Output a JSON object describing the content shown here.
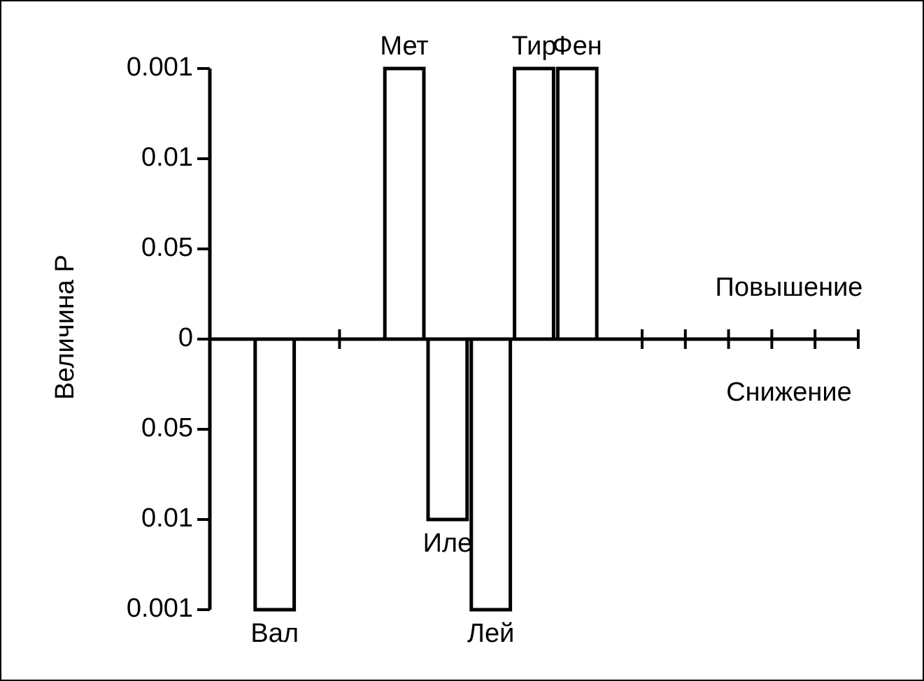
{
  "chart_data": {
    "type": "bar",
    "y_label": "Величина Р",
    "annotations": [
      "Повышение",
      "Снижение"
    ],
    "categories": [
      null,
      "Вал",
      null,
      null,
      "Мет",
      "Иле",
      "Лей",
      "Тир",
      "Фен",
      null,
      null,
      null,
      null,
      null,
      null
    ],
    "values": [
      null,
      -3,
      null,
      null,
      3,
      -2,
      -3,
      3,
      3,
      null,
      null,
      null,
      null,
      null,
      null
    ],
    "color": "#ffffff",
    "ylim": [
      -3,
      3
    ],
    "yticks": [
      {
        "value": 3,
        "label": "0.001"
      },
      {
        "value": 2,
        "label": "0.01"
      },
      {
        "value": 1,
        "label": "0.05"
      },
      0,
      {
        "value": -1,
        "label": "0.05"
      },
      {
        "value": -2,
        "label": "0.01"
      },
      {
        "value": -3,
        "label": "0.001"
      }
    ]
  }
}
